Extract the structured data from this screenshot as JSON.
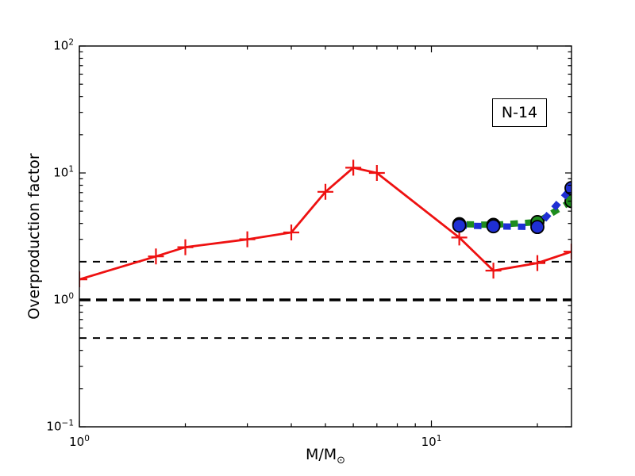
{
  "chart_data": {
    "type": "line",
    "title": "",
    "xlabel": "M/M",
    "xlabel_subscript": "⊙",
    "ylabel": "Overproduction factor",
    "annotation": {
      "text": "N-14"
    },
    "x_scale": "log",
    "y_scale": "log",
    "xlim": [
      1,
      25
    ],
    "ylim": [
      0.1,
      100
    ],
    "grid": false,
    "legend": "none",
    "tick_label_base": "10",
    "x_tick_exponents": [
      0,
      1
    ],
    "y_tick_exponents": [
      -1,
      0,
      1,
      2
    ],
    "reference_lines": [
      {
        "y": 2.0,
        "style": "dashed",
        "weight": "thin",
        "color": "#000000"
      },
      {
        "y": 1.0,
        "style": "dashed",
        "weight": "thick",
        "color": "#000000"
      },
      {
        "y": 0.5,
        "style": "dashed",
        "weight": "thin",
        "color": "#000000"
      }
    ],
    "series": [
      {
        "name": "red-solid-plus-markers",
        "color": "#ee1111",
        "line": "solid",
        "marker": "plus",
        "x": [
          1.0,
          1.65,
          2.0,
          3.0,
          4.0,
          5.0,
          6.0,
          7.0,
          12.0,
          15.0,
          20.0,
          25.0
        ],
        "y": [
          1.45,
          2.2,
          2.6,
          3.0,
          3.4,
          7.1,
          11.0,
          10.0,
          3.1,
          1.7,
          1.95,
          2.4
        ]
      },
      {
        "name": "green-dashed-circle-markers",
        "color": "#1e8c1e",
        "line": "dashed",
        "marker": "circle",
        "dash_offset": 9.5,
        "x": [
          12.0,
          15.0,
          20.0,
          25.0
        ],
        "y": [
          3.95,
          3.9,
          4.1,
          6.0
        ]
      },
      {
        "name": "blue-dashed-circle-markers",
        "color": "#1f2fd4",
        "line": "dashed",
        "marker": "circle",
        "dash_offset": 0,
        "x": [
          12.0,
          15.0,
          20.0,
          25.0
        ],
        "y": [
          3.85,
          3.8,
          3.75,
          7.6
        ]
      }
    ]
  }
}
